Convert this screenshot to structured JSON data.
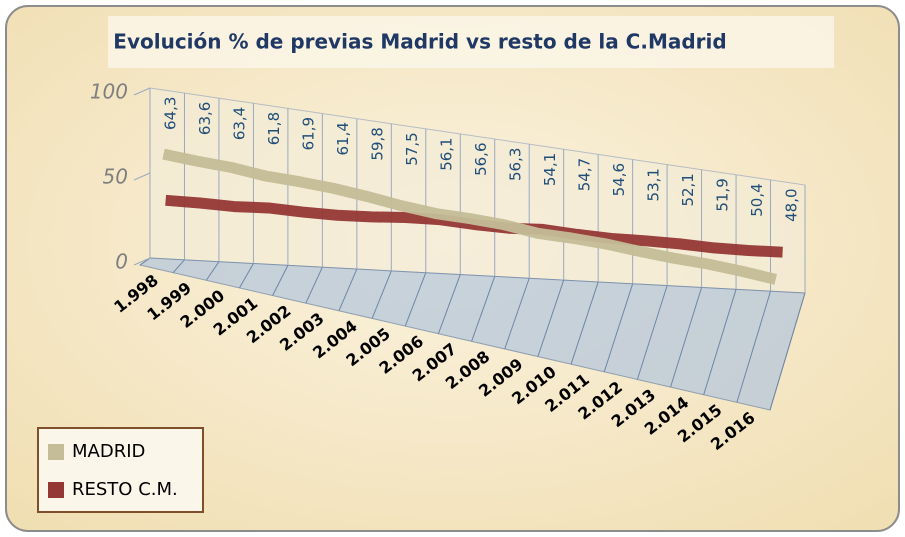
{
  "chart_data": {
    "type": "line3d",
    "title": "Evolución % de previas Madrid vs resto de la C.Madrid",
    "categories": [
      "1.998",
      "1.999",
      "2.000",
      "2.001",
      "2.002",
      "2.003",
      "2.004",
      "2.005",
      "2.006",
      "2.007",
      "2.008",
      "2.009",
      "2.010",
      "2.011",
      "2.012",
      "2.013",
      "2.014",
      "2.015",
      "2.016"
    ],
    "series": [
      {
        "name": "MADRID",
        "color": "#c4bd97",
        "values": [
          64.3,
          63.6,
          63.4,
          61.8,
          61.9,
          61.4,
          59.8,
          57.5,
          56.1,
          56.6,
          56.3,
          54.1,
          54.7,
          54.6,
          53.1,
          52.1,
          51.9,
          50.4,
          48.0
        ],
        "value_labels": [
          "64,3",
          "63,6",
          "63,4",
          "61,8",
          "61,9",
          "61,4",
          "59,8",
          "57,5",
          "56,1",
          "56,6",
          "56,3",
          "54,1",
          "54,7",
          "54,6",
          "53,1",
          "52,1",
          "51,9",
          "50,4",
          "48,0"
        ]
      },
      {
        "name": "RESTO C.M.",
        "color": "#953735",
        "values": [
          35.7,
          36.4,
          36.6,
          38.2,
          38.1,
          38.6,
          40.2,
          42.5,
          43.9,
          43.4,
          43.7,
          45.9,
          45.3,
          45.4,
          46.9,
          47.9,
          48.1,
          49.6,
          52.0
        ]
      }
    ],
    "ylim": [
      0,
      100
    ],
    "yticks": [
      0,
      50,
      100
    ],
    "grid": true,
    "legend": "bottom-left"
  }
}
